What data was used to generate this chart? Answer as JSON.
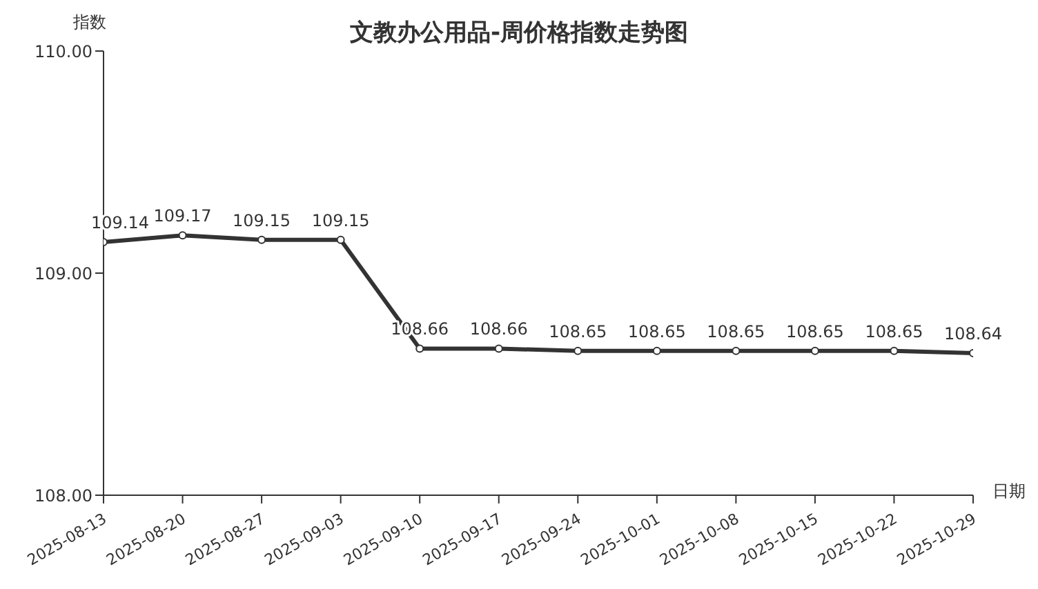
{
  "chart_data": {
    "type": "line",
    "title": "文教办公用品-周价格指数走势图",
    "xlabel": "日期",
    "ylabel": "指数",
    "categories": [
      "2025-08-13",
      "2025-08-20",
      "2025-08-27",
      "2025-09-03",
      "2025-09-10",
      "2025-09-17",
      "2025-09-24",
      "2025-10-01",
      "2025-10-08",
      "2025-10-15",
      "2025-10-22",
      "2025-10-29"
    ],
    "series": [
      {
        "color": "#333333",
        "values": [
          109.14,
          109.17,
          109.15,
          109.15,
          108.66,
          108.66,
          108.65,
          108.65,
          108.65,
          108.65,
          108.65,
          108.64
        ]
      }
    ],
    "ylim": [
      108,
      110
    ],
    "yticks": [
      {
        "value": 108,
        "label": "108.00"
      },
      {
        "value": 109,
        "label": "109.00"
      },
      {
        "value": 110,
        "label": "110.00"
      }
    ],
    "data_labels": true,
    "marker": "circle",
    "line_style": "solid"
  }
}
